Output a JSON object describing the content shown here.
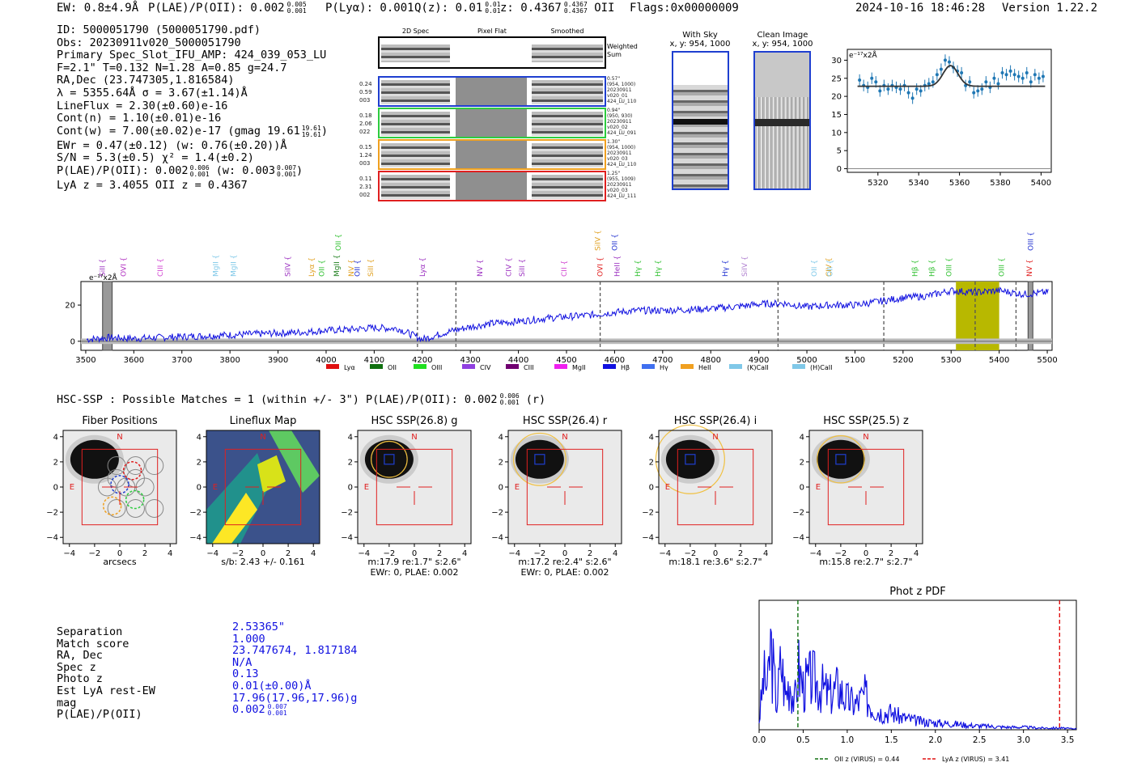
{
  "header": {
    "ew": "EW: 0.8±4.9Å",
    "plae": "P(LAE)/P(OII): 0.002",
    "plae_hi": "0.005",
    "plae_lo": "0.001",
    "plya": "P(Lyα): 0.001",
    "qz": "Q(z): 0.01",
    "qz_hi": "0.01",
    "qz_lo": "0.01",
    "z": "z: 0.4367",
    "z_hi": "0.4367",
    "z_lo": "0.4367",
    "z_line": "OII",
    "flags": "Flags:0x00000009",
    "datetime": "2024-10-16 18:46:28",
    "version": "Version 1.22.2"
  },
  "info": {
    "lines": [
      "ID: 5000051790 (5000051790.pdf)",
      "Obs: 20230911v020_5000051790",
      "Primary Spec_Slot_IFU_AMP: 424_039_053_LU",
      "F=2.1\"  T=0.132  N=1.28  A=0.85  g=24.7",
      "RA,Dec (23.747305,1.816584)",
      "λ = 5355.64Å  σ = 3.67(±1.14)Å",
      "LineFlux = 2.30(±0.60)e-16",
      "Cont(n) = 1.10(±0.01)e-16",
      "Cont(w) = 7.00(±0.02)e-17 (gmag 19.61",
      "EWr = 0.47(±0.12) (w: 0.76(±0.20))Å",
      "S/N = 5.3(±0.5)  χ² = 1.4(±0.2)",
      "P(LAE)/P(OII): 0.002",
      "LyA z = 3.4055  OII z = 0.4367"
    ],
    "gmag_hi": "19.61",
    "gmag_lo": "19.61",
    "plae_hi": "0.006",
    "plae_lo": "0.001",
    "plae_w": "(w: 0.003",
    "plae_w_hi": "0.007",
    "plae_w_lo": "0.001"
  },
  "cutouts": {
    "columns": [
      "2D Spec",
      "Pixel Flat",
      "Smoothed"
    ],
    "weighted_sum_label": "Weighted Sum",
    "rows": [
      {
        "color": "#1f3fd0",
        "left": [
          "0.24",
          "0.59",
          "003"
        ],
        "right": [
          "0.57\"",
          "(954, 1000)",
          "20230911",
          "v020_01",
          "424_LU_110"
        ]
      },
      {
        "color": "#2ecc40",
        "left": [
          "0.18",
          "2.06",
          "022"
        ],
        "right": [
          "0.94\"",
          "(950, 930)",
          "20230911",
          "v020_02",
          "424_LU_091"
        ]
      },
      {
        "color": "#f0a020",
        "left": [
          "0.15",
          "1.24",
          "003"
        ],
        "right": [
          "1.30\"",
          "(954, 1000)",
          "20230911",
          "v020_03",
          "424_LU_110"
        ]
      },
      {
        "color": "#e02020",
        "left": [
          "0.11",
          "2.31",
          "002"
        ],
        "right": [
          "1.25\"",
          "(955, 1009)",
          "20230911",
          "v020_03",
          "424_LU_111"
        ]
      }
    ]
  },
  "sky_images": {
    "with_sky": {
      "title": "With Sky",
      "subtitle": "x, y: 954, 1000"
    },
    "clean": {
      "title": "Clean Image",
      "subtitle": "x, y: 954, 1000"
    }
  },
  "zoom_spec": {
    "unit": "e⁻¹⁷x2Å",
    "xticks": [
      "5320",
      "5340",
      "5360",
      "5380",
      "5400"
    ],
    "yticks": [
      "0",
      "5",
      "10",
      "15",
      "20",
      "25",
      "30"
    ]
  },
  "full_spec": {
    "unit": "e⁻¹⁷x2Å",
    "xticks": [
      "3500",
      "3600",
      "3700",
      "3800",
      "3900",
      "4000",
      "4100",
      "4200",
      "4300",
      "4400",
      "4500",
      "4600",
      "4700",
      "4800",
      "4900",
      "5000",
      "5100",
      "5200",
      "5300",
      "5400",
      "5500"
    ],
    "yticks": [
      "0",
      "20"
    ],
    "line_labels": [
      {
        "t": "SiII",
        "c": "#9b30c0",
        "w": 3535,
        "row": 0
      },
      {
        "t": "OVI",
        "c": "#b030c0",
        "w": 3578,
        "row": 0
      },
      {
        "t": "CIII",
        "c": "#d040d0",
        "w": 3655,
        "row": 0
      },
      {
        "t": "MgII",
        "c": "#7ec8e8",
        "w": 3770,
        "row": 0
      },
      {
        "t": "MgII",
        "c": "#7ec8e8",
        "w": 3807,
        "row": 0
      },
      {
        "t": "SiIV",
        "c": "#9b30c0",
        "w": 3920,
        "row": 0
      },
      {
        "t": "Lyα",
        "c": "#e0a020",
        "w": 3970,
        "row": 0
      },
      {
        "t": "OII",
        "c": "#30c030",
        "w": 3991,
        "row": 0
      },
      {
        "t": "MgII",
        "c": "#208020",
        "w": 4022,
        "row": 0
      },
      {
        "t": "OII",
        "c": "#30c030",
        "w": 4025,
        "row": 1
      },
      {
        "t": "NV",
        "c": "#e0a020",
        "w": 4052,
        "row": 0
      },
      {
        "t": "OII",
        "c": "#2030d0",
        "w": 4065,
        "row": 0
      },
      {
        "t": "SiII",
        "c": "#e0a020",
        "w": 4093,
        "row": 0
      },
      {
        "t": "Lyα",
        "c": "#9b30c0",
        "w": 4200,
        "row": 0
      },
      {
        "t": "NV",
        "c": "#9b30c0",
        "w": 4320,
        "row": 0
      },
      {
        "t": "CIV",
        "c": "#9b30c0",
        "w": 4380,
        "row": 0
      },
      {
        "t": "SiII",
        "c": "#9b30c0",
        "w": 4407,
        "row": 0
      },
      {
        "t": "CII",
        "c": "#d040d0",
        "w": 4495,
        "row": 0
      },
      {
        "t": "OVI",
        "c": "#e02020",
        "w": 4570,
        "row": 0
      },
      {
        "t": "SiIV",
        "c": "#e0a020",
        "w": 4565,
        "row": 1
      },
      {
        "t": "HeII",
        "c": "#9b30c0",
        "w": 4605,
        "row": 0
      },
      {
        "t": "OII",
        "c": "#2030d0",
        "w": 4600,
        "row": 1
      },
      {
        "t": "Hγ",
        "c": "#30c030",
        "w": 4648,
        "row": 0
      },
      {
        "t": "Hγ",
        "c": "#30c030",
        "w": 4690,
        "row": 0
      },
      {
        "t": "Hγ",
        "c": "#2030d0",
        "w": 4830,
        "row": 0
      },
      {
        "t": "SiIV",
        "c": "#b080d0",
        "w": 4870,
        "row": 0
      },
      {
        "t": "OII",
        "c": "#7ec8e8",
        "w": 5015,
        "row": 0
      },
      {
        "t": "CIV",
        "c": "#e0a020",
        "w": 5045,
        "row": 0
      },
      {
        "t": "OII",
        "c": "#7ec8e8",
        "w": 5048,
        "row": 0
      },
      {
        "t": "Hβ",
        "c": "#30c030",
        "w": 5225,
        "row": 0
      },
      {
        "t": "Hβ",
        "c": "#30c030",
        "w": 5260,
        "row": 0
      },
      {
        "t": "OIII",
        "c": "#30c030",
        "w": 5295,
        "row": 0
      },
      {
        "t": "OIII",
        "c": "#30c030",
        "w": 5405,
        "row": 0
      },
      {
        "t": "NV",
        "c": "#e02020",
        "w": 5463,
        "row": 0
      },
      {
        "t": "OIII",
        "c": "#2030d0",
        "w": 5465,
        "row": 1
      }
    ],
    "legend": [
      {
        "label": "Lyα",
        "color": "#e01010"
      },
      {
        "label": "OII",
        "color": "#107010"
      },
      {
        "label": "OIII",
        "color": "#20e020"
      },
      {
        "label": "CIV",
        "color": "#9040e0"
      },
      {
        "label": "CIII",
        "color": "#700070"
      },
      {
        "label": "MgII",
        "color": "#f020f0"
      },
      {
        "label": "Hβ",
        "color": "#1010e0"
      },
      {
        "label": "Hγ",
        "color": "#4070f0"
      },
      {
        "label": "HeII",
        "color": "#f0a020"
      },
      {
        "label": "(K)CaII",
        "color": "#80c8e8"
      },
      {
        "label": "(H)CaII",
        "color": "#80c8e8"
      }
    ]
  },
  "hsc": {
    "summary": "HSC-SSP : Possible Matches = 1 (within +/- 3\")  P(LAE)/P(OII): 0.002",
    "summary_hi": "0.006",
    "summary_lo": "0.001",
    "summary_band": "(r)",
    "panels": [
      {
        "title": "Fiber Positions",
        "under": "arcsecs",
        "under2": "",
        "kind": "fiber"
      },
      {
        "title": "Lineflux Map",
        "under": "s/b: 2.43 +/- 0.161",
        "under2": "",
        "kind": "lineflux"
      },
      {
        "title": "HSC SSP(26.8) g",
        "under": "m:17.9  re:1.7\"  s:2.6\"",
        "under2": "EWr: 0, PLAE: 0.002",
        "kind": "img",
        "circle": 0.55
      },
      {
        "title": "HSC SSP(26.4) r",
        "under": "m:17.2  re:2.4\"  s:2.6\"",
        "under2": "EWr: 0, PLAE: 0.002",
        "kind": "img",
        "circle": 0.8
      },
      {
        "title": "HSC SSP(26.4) i",
        "under": "m:18.1  re:3.6\"  s:2.7\"",
        "under2": "",
        "kind": "img",
        "circle": 1.05
      },
      {
        "title": "HSC SSP(25.5) z",
        "under": "m:15.8  re:2.7\"  s:2.7\"",
        "under2": "",
        "kind": "img",
        "circle": 0.72
      }
    ],
    "ticks": [
      "−4",
      "−2",
      "0",
      "2",
      "4"
    ],
    "n_label": "N",
    "e_label": "E"
  },
  "match": {
    "labels": [
      "Separation",
      "Match score",
      "RA, Dec",
      "Spec z",
      "Photo z",
      "Est LyA rest-EW",
      "mag",
      "P(LAE)/P(OII)"
    ],
    "values": [
      "2.53365\"",
      "1.000",
      "23.747674, 1.817184",
      "N/A",
      "0.13",
      "0.01(±0.00)Å",
      "17.96(17.96,17.96)g",
      "0.002"
    ],
    "plae_hi": "0.007",
    "plae_lo": "0.001"
  },
  "photz": {
    "title": "Phot z PDF",
    "xticks": [
      "0.0",
      "0.5",
      "1.0",
      "1.5",
      "2.0",
      "2.5",
      "3.0",
      "3.5"
    ],
    "legend_oii": "OII z (VIRUS) = 0.44",
    "legend_lya": "LyA z (VIRUS) = 3.41",
    "oii_z": 0.44,
    "lya_z": 3.41,
    "xlim": [
      0,
      3.6
    ]
  },
  "chart_data": [
    {
      "type": "scatter",
      "title": "",
      "ylabel": "e⁻¹⁷x2Å",
      "xlim": [
        5305,
        5405
      ],
      "ylim": [
        -1,
        33
      ],
      "x": [
        5311,
        5313,
        5315,
        5317,
        5319,
        5321,
        5323,
        5325,
        5327,
        5329,
        5331,
        5333,
        5335,
        5337,
        5339,
        5341,
        5343,
        5345,
        5347,
        5349,
        5351,
        5353,
        5355,
        5357,
        5359,
        5361,
        5363,
        5365,
        5367,
        5369,
        5371,
        5373,
        5375,
        5377,
        5379,
        5381,
        5383,
        5385,
        5387,
        5389,
        5391,
        5393,
        5395,
        5397,
        5399,
        5401
      ],
      "y": [
        24.5,
        23,
        22.5,
        25,
        24,
        21.5,
        23,
        22,
        23,
        22.5,
        22,
        23,
        21,
        19.5,
        22,
        21.5,
        23,
        23.5,
        24,
        26,
        27.5,
        30,
        29.5,
        28,
        27,
        26.5,
        23,
        24,
        21,
        21.5,
        22,
        24,
        22.5,
        25,
        23.5,
        26.5,
        26,
        27,
        26,
        25.5,
        25,
        26.5,
        24,
        26,
        25,
        25.5
      ],
      "fit": {
        "baseline": 22.8,
        "peak": 5355.6,
        "sigma": 3.67,
        "amp": 5.7
      }
    },
    {
      "type": "line",
      "title": "",
      "ylabel": "e⁻¹⁷x2Å",
      "xlim": [
        3490,
        5510
      ],
      "ylim": [
        -5,
        33
      ],
      "series": [
        {
          "name": "",
          "x": [
            3500,
            3550,
            3600,
            3650,
            3700,
            3750,
            3800,
            3850,
            3900,
            3950,
            4000,
            4050,
            4100,
            4150,
            4200,
            4250,
            4300,
            4350,
            4400,
            4450,
            4500,
            4550,
            4600,
            4650,
            4700,
            4750,
            4800,
            4850,
            4900,
            4950,
            5000,
            5050,
            5100,
            5150,
            5200,
            5250,
            5300,
            5350,
            5400,
            5450,
            5500
          ],
          "y": [
            1,
            2,
            1.5,
            2,
            2.5,
            3,
            3.5,
            4,
            4.5,
            5,
            6,
            6.5,
            7.5,
            7,
            1,
            5,
            8,
            10,
            11,
            12.5,
            13.5,
            14.5,
            16,
            17,
            17,
            17.5,
            18,
            19,
            20.5,
            21,
            19,
            20,
            20,
            22,
            24,
            25,
            28,
            27,
            28,
            26,
            27
          ]
        }
      ],
      "shaded": [
        5310,
        5400
      ],
      "dashed_lines": [
        4190,
        4270,
        4570,
        4940,
        5160,
        5350,
        5435
      ]
    },
    {
      "type": "line",
      "title": "Phot z PDF",
      "xlim": [
        0,
        3.6
      ],
      "series": [
        {
          "name": "",
          "x": [
            0.0,
            0.05,
            0.1,
            0.13,
            0.16,
            0.2,
            0.25,
            0.3,
            0.35,
            0.4,
            0.45,
            0.5,
            0.6,
            0.7,
            0.8,
            0.9,
            1.0,
            1.1,
            1.2,
            1.3,
            1.4,
            1.5,
            1.6,
            1.8,
            2.0,
            2.2,
            2.4,
            2.6,
            2.8,
            3.0,
            3.2,
            3.4,
            3.6
          ],
          "y": [
            0.1,
            0.6,
            0.5,
            1.0,
            0.7,
            0.3,
            0.8,
            0.4,
            0.6,
            0.3,
            0.7,
            0.5,
            0.6,
            0.5,
            0.4,
            0.5,
            0.35,
            0.3,
            0.4,
            0.25,
            0.2,
            0.2,
            0.15,
            0.1,
            0.08,
            0.07,
            0.05,
            0.04,
            0.03,
            0.03,
            0.02,
            0.02,
            0.01
          ]
        }
      ],
      "vlines": [
        {
          "x": 0.44,
          "name": "OII z (VIRUS) = 0.44"
        },
        {
          "x": 3.41,
          "name": "LyA z (VIRUS) = 3.41"
        }
      ]
    }
  ]
}
